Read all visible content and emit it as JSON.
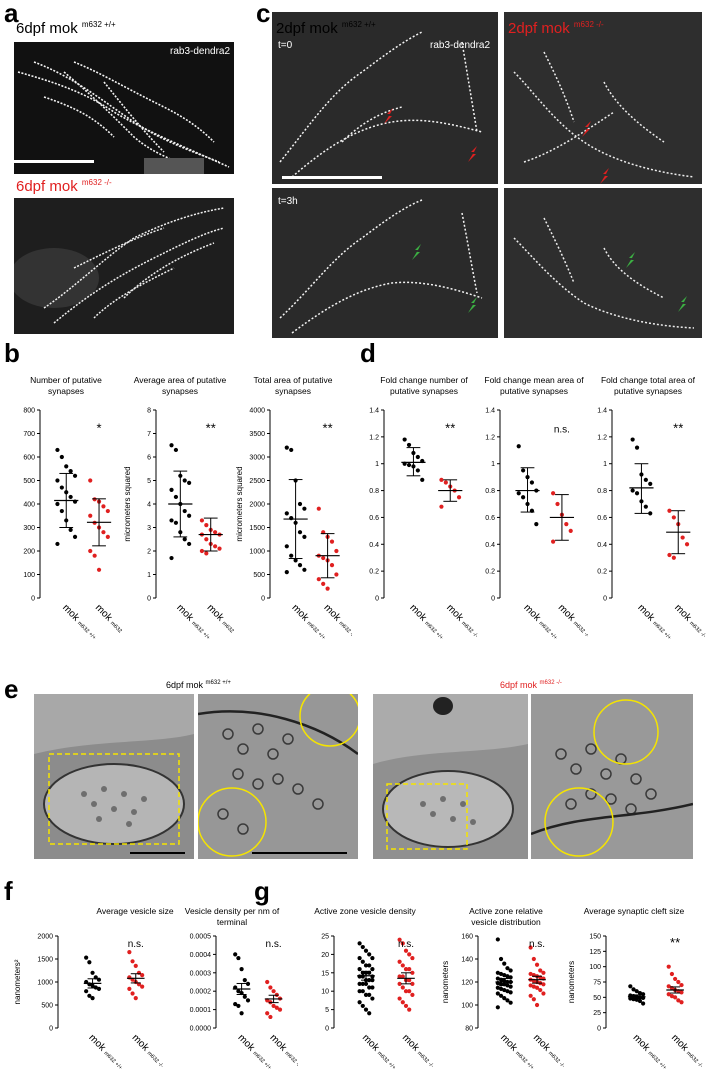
{
  "figure": {
    "panel_letters": [
      "a",
      "b",
      "c",
      "d",
      "e",
      "f",
      "g"
    ],
    "colors": {
      "wt": "#000000",
      "mut": "#e02020",
      "green": "#3cb043",
      "scale": "#ffffff",
      "em_circle": "#f5e400"
    },
    "panel_a": {
      "top": {
        "title": "6dpf mok",
        "genotype": "m632 +/+",
        "marker": "rab3-dendra2"
      },
      "bottom": {
        "title": "6dpf mok",
        "genotype": "m632 -/-"
      }
    },
    "panel_c": {
      "left_title": "2dpf mok",
      "left_genotype": "m632 +/+",
      "right_title": "2dpf mok",
      "right_genotype": "m632 -/-",
      "marker": "rab3-dendra2",
      "t0": "t=0",
      "t3": "t=3h"
    },
    "panel_e": {
      "left_title": "6dpf mok",
      "left_genotype": "m632 +/+",
      "right_title": "6dpf mok",
      "right_genotype": "m632 -/-"
    },
    "xlabels": {
      "main": "mok",
      "wt": "m632 +/+",
      "mut": "m632 -/-"
    }
  },
  "chart_data": [
    {
      "id": "b1",
      "type": "scatter",
      "title": "Number of putative synapses",
      "ylabel": "",
      "ylim": [
        0,
        800
      ],
      "ticks": [
        0,
        100,
        200,
        300,
        400,
        500,
        600,
        700,
        800
      ],
      "sig": "*",
      "error": "sd",
      "groups": [
        {
          "name": "mok m632 +/+",
          "mean": 415,
          "low": 300,
          "high": 530,
          "values": [
            630,
            600,
            560,
            540,
            520,
            500,
            470,
            450,
            430,
            410,
            400,
            370,
            330,
            290,
            260,
            230
          ]
        },
        {
          "name": "mok m632 -/-",
          "mean": 322,
          "low": 222,
          "high": 422,
          "values": [
            500,
            420,
            410,
            390,
            370,
            350,
            320,
            300,
            280,
            260,
            200,
            180,
            120
          ]
        }
      ]
    },
    {
      "id": "b2",
      "type": "scatter",
      "title": "Average area of putative synapses",
      "ylabel": "micrometers squared",
      "ylim": [
        0,
        8
      ],
      "ticks": [
        0,
        1,
        2,
        3,
        4,
        5,
        6,
        7,
        8
      ],
      "sig": "**",
      "error": "sd",
      "groups": [
        {
          "name": "mok m632 +/+",
          "mean": 4.0,
          "low": 2.6,
          "high": 5.4,
          "values": [
            6.5,
            6.3,
            5.2,
            5.0,
            4.9,
            4.6,
            4.3,
            4.0,
            3.7,
            3.5,
            3.3,
            3.2,
            2.8,
            2.5,
            2.3,
            1.7
          ]
        },
        {
          "name": "mok m632 -/-",
          "mean": 2.7,
          "low": 2.0,
          "high": 3.4,
          "values": [
            3.3,
            3.1,
            2.9,
            2.8,
            2.7,
            2.7,
            2.5,
            2.3,
            2.2,
            2.1,
            2.0,
            1.9
          ]
        }
      ]
    },
    {
      "id": "b3",
      "type": "scatter",
      "title": "Total area of putative synapses",
      "ylabel": "micrometers squared",
      "ylim": [
        0,
        4000
      ],
      "ticks": [
        0,
        500,
        1000,
        1500,
        2000,
        2500,
        3000,
        3500,
        4000
      ],
      "sig": "**",
      "error": "sd",
      "groups": [
        {
          "name": "mok m632 +/+",
          "mean": 1680,
          "low": 840,
          "high": 2520,
          "values": [
            3200,
            3150,
            2500,
            2000,
            1900,
            1800,
            1700,
            1600,
            1400,
            1300,
            1100,
            900,
            800,
            700,
            600,
            550
          ]
        },
        {
          "name": "mok m632 -/-",
          "mean": 900,
          "low": 430,
          "high": 1370,
          "values": [
            1900,
            1400,
            1300,
            1200,
            1000,
            900,
            850,
            800,
            700,
            500,
            400,
            300,
            200
          ]
        }
      ]
    },
    {
      "id": "d1",
      "type": "scatter",
      "title": "Fold change number of putative synapses",
      "ylabel": "",
      "ylim": [
        0,
        1.4
      ],
      "ticks": [
        0,
        0.2,
        0.4,
        0.6,
        0.8,
        1.0,
        1.2,
        1.4
      ],
      "sig": "**",
      "error": "sd",
      "groups": [
        {
          "name": "mok m632 +/+",
          "mean": 1.01,
          "low": 0.91,
          "high": 1.12,
          "values": [
            1.18,
            1.14,
            1.08,
            1.05,
            1.02,
            1.0,
            0.99,
            0.98,
            0.95,
            0.88
          ]
        },
        {
          "name": "mok m632 -/-",
          "mean": 0.8,
          "low": 0.72,
          "high": 0.88,
          "values": [
            0.88,
            0.86,
            0.83,
            0.8,
            0.75,
            0.68
          ]
        }
      ]
    },
    {
      "id": "d2",
      "type": "scatter",
      "title": "Fold change mean area of putative synapses",
      "ylabel": "",
      "ylim": [
        0,
        1.4
      ],
      "ticks": [
        0,
        0.2,
        0.4,
        0.6,
        0.8,
        1.0,
        1.2,
        1.4
      ],
      "sig": "n.s.",
      "error": "sd",
      "groups": [
        {
          "name": "mok m632 +/+",
          "mean": 0.8,
          "low": 0.64,
          "high": 0.97,
          "values": [
            1.13,
            0.95,
            0.9,
            0.86,
            0.8,
            0.78,
            0.75,
            0.7,
            0.65,
            0.55
          ]
        },
        {
          "name": "mok m632 -/-",
          "mean": 0.6,
          "low": 0.43,
          "high": 0.77,
          "values": [
            0.78,
            0.7,
            0.62,
            0.55,
            0.5,
            0.42
          ]
        }
      ]
    },
    {
      "id": "d3",
      "type": "scatter",
      "title": "Fold change total area of putative synapses",
      "ylabel": "",
      "ylim": [
        0,
        1.4
      ],
      "ticks": [
        0,
        0.2,
        0.4,
        0.6,
        0.8,
        1.0,
        1.2,
        1.4
      ],
      "sig": "**",
      "error": "sd",
      "groups": [
        {
          "name": "mok m632 +/+",
          "mean": 0.82,
          "low": 0.63,
          "high": 1.0,
          "values": [
            1.18,
            1.12,
            0.92,
            0.88,
            0.85,
            0.8,
            0.78,
            0.72,
            0.68,
            0.63
          ]
        },
        {
          "name": "mok m632 -/-",
          "mean": 0.49,
          "low": 0.33,
          "high": 0.65,
          "values": [
            0.65,
            0.6,
            0.55,
            0.45,
            0.4,
            0.32,
            0.3
          ]
        }
      ]
    },
    {
      "id": "f1",
      "type": "scatter",
      "title": "Average vesicle size",
      "ylabel": "nanometers²",
      "ylim": [
        0,
        2000
      ],
      "ticks": [
        0,
        500,
        1000,
        1500,
        2000
      ],
      "sig": "n.s.",
      "error": "sem",
      "groups": [
        {
          "name": "mok m632 +/+",
          "mean": 970,
          "low": 870,
          "high": 1070,
          "values": [
            1530,
            1430,
            1200,
            1100,
            1050,
            1000,
            950,
            920,
            880,
            850,
            800,
            700,
            650
          ]
        },
        {
          "name": "mok m632 -/-",
          "mean": 1080,
          "low": 980,
          "high": 1180,
          "values": [
            1650,
            1450,
            1350,
            1200,
            1150,
            1100,
            1050,
            1000,
            950,
            900,
            850,
            750,
            650
          ]
        }
      ]
    },
    {
      "id": "f2",
      "type": "scatter",
      "title": "Vesicle density per nm of terminal",
      "ylabel": "",
      "ylim": [
        0,
        0.0005
      ],
      "ticks": [
        0.0,
        0.0001,
        0.0002,
        0.0003,
        0.0004,
        0.0005
      ],
      "tick_labels": [
        "0.0000",
        "0.0001",
        "0.0002",
        "0.0003",
        "0.0004",
        "0.0005"
      ],
      "sig": "n.s.",
      "error": "sem",
      "groups": [
        {
          "name": "mok m632 +/+",
          "mean": 0.000212,
          "low": 0.000182,
          "high": 0.000242,
          "values": [
            0.0004,
            0.00038,
            0.00032,
            0.00026,
            0.00024,
            0.00022,
            0.0002,
            0.00019,
            0.00017,
            0.00015,
            0.00013,
            0.00012,
            8e-05
          ]
        },
        {
          "name": "mok m632 -/-",
          "mean": 0.000158,
          "low": 0.000138,
          "high": 0.000178,
          "values": [
            0.00025,
            0.00022,
            0.0002,
            0.00018,
            0.00016,
            0.00015,
            0.00014,
            0.00012,
            0.00011,
            0.0001,
            8e-05,
            6e-05
          ]
        }
      ]
    },
    {
      "id": "g1",
      "type": "scatter",
      "title": "Active zone vesicle density",
      "ylabel": "",
      "ylim": [
        0,
        25
      ],
      "ticks": [
        0,
        5,
        10,
        15,
        20,
        25
      ],
      "sig": "n.s.",
      "error": "sem",
      "groups": [
        {
          "name": "mok m632 +/+",
          "mean": 14.2,
          "low": 13.0,
          "high": 15.4,
          "values": [
            23,
            22,
            21,
            20,
            19,
            19,
            18,
            17,
            17,
            16,
            16,
            15,
            15,
            15,
            14,
            14,
            14,
            13,
            13,
            13,
            12,
            12,
            12,
            11,
            11,
            10,
            10,
            9,
            9,
            8,
            7,
            6,
            5,
            4
          ]
        },
        {
          "name": "mok m632 -/-",
          "mean": 13.5,
          "low": 12.0,
          "high": 15.0,
          "values": [
            24,
            23,
            21,
            20,
            19,
            18,
            17,
            16,
            16,
            15,
            14,
            14,
            13,
            13,
            12,
            12,
            11,
            10,
            10,
            9,
            8,
            7,
            6,
            5
          ]
        }
      ]
    },
    {
      "id": "g2",
      "type": "scatter",
      "title": "Active zone relative vesicle distribution",
      "ylabel": "nanometers",
      "ylim": [
        80,
        160
      ],
      "ticks": [
        80,
        100,
        120,
        140,
        160
      ],
      "sig": "n.s.",
      "error": "sem",
      "groups": [
        {
          "name": "mok m632 +/+",
          "mean": 120,
          "low": 117,
          "high": 123,
          "values": [
            157,
            140,
            136,
            132,
            130,
            128,
            127,
            126,
            125,
            124,
            123,
            122,
            121,
            120,
            120,
            119,
            118,
            118,
            117,
            116,
            115,
            114,
            113,
            112,
            111,
            110,
            108,
            106,
            104,
            102,
            98
          ]
        },
        {
          "name": "mok m632 -/-",
          "mean": 122,
          "low": 119,
          "high": 125,
          "values": [
            150,
            140,
            135,
            130,
            128,
            127,
            126,
            125,
            124,
            123,
            122,
            121,
            120,
            119,
            118,
            117,
            116,
            115,
            113,
            110,
            108,
            105,
            100
          ]
        }
      ]
    },
    {
      "id": "g3",
      "type": "scatter",
      "title": "Average synaptic cleft size",
      "ylabel": "nanometers",
      "ylim": [
        0,
        150
      ],
      "ticks": [
        0,
        25,
        50,
        75,
        100,
        125,
        150
      ],
      "sig": "**",
      "error": "sem",
      "groups": [
        {
          "name": "mok m632 +/+",
          "mean": 51,
          "low": 48,
          "high": 54,
          "values": [
            68,
            63,
            60,
            57,
            55,
            53,
            52,
            51,
            50,
            49,
            48,
            47,
            46,
            44,
            40
          ]
        },
        {
          "name": "mok m632 -/-",
          "mean": 62,
          "low": 57,
          "high": 67,
          "values": [
            100,
            88,
            80,
            75,
            70,
            68,
            65,
            62,
            60,
            58,
            55,
            52,
            50,
            45,
            42
          ]
        }
      ]
    }
  ]
}
